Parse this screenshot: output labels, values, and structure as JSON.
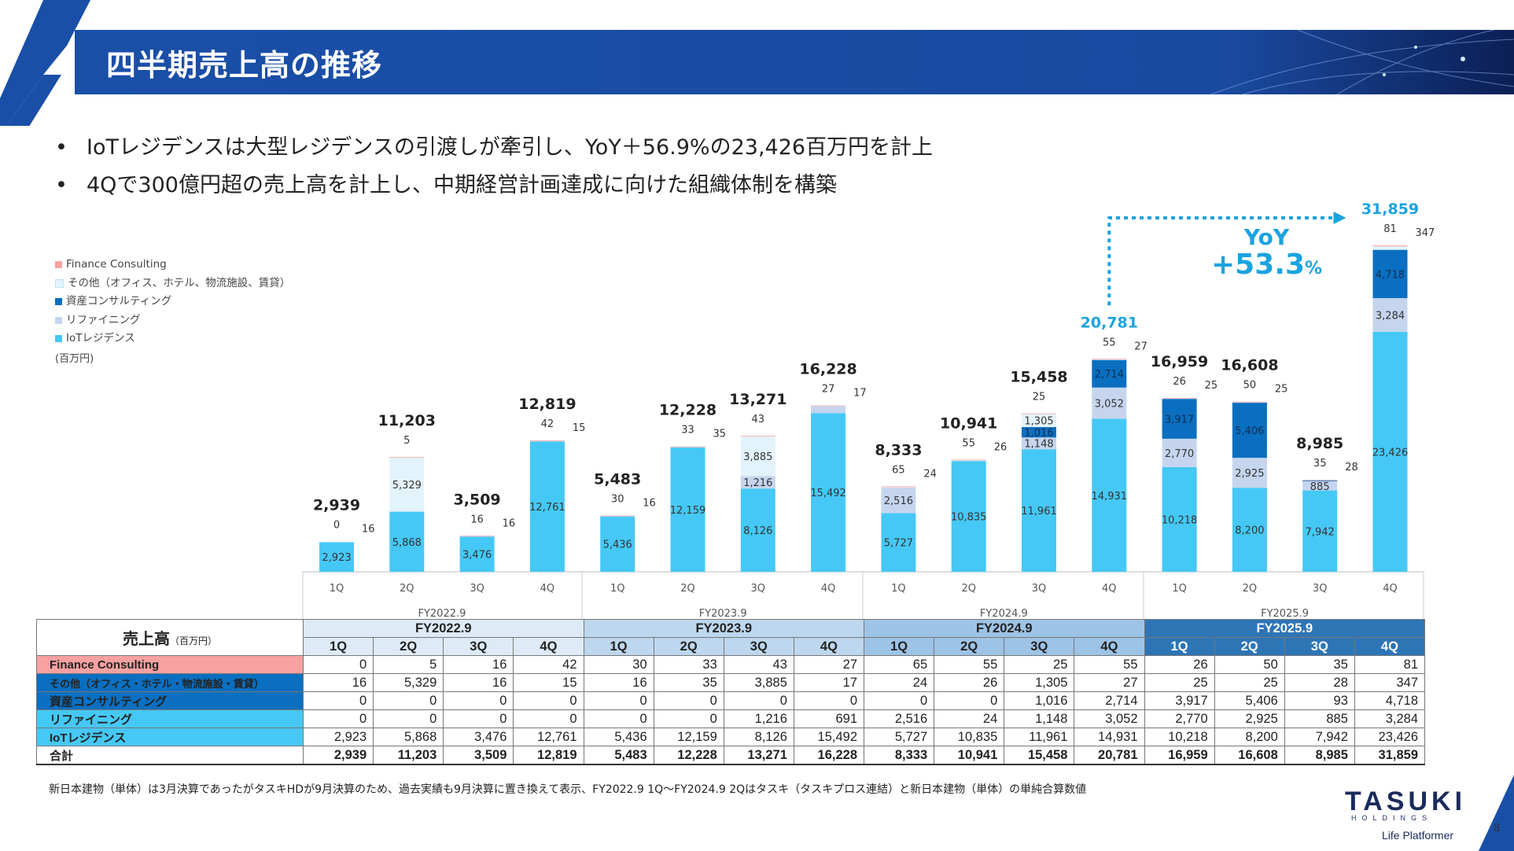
{
  "page": {
    "title": "四半期売上高の推移",
    "bullets": [
      "IoTレジデンスは大型レジデンスの引渡しが牽引し、YoY＋56.9%の23,426百万円を計上",
      "4Qで300億円超の売上高を計上し、中期経営計画達成に向けた組織体制を構築"
    ],
    "footnote": "新日本建物（単体）は3月決算であったがタスキHDが9月決算のため、過去実績も9月決算に置き換えて表示、FY2022.9 1Q〜FY2024.9 2Qはタスキ（タスキプロス連結）と新日本建物（単体）の単純合算数値",
    "logo_text": "TASUKI",
    "logo_sub": "HOLDINGS",
    "tagline": "Life Platformer",
    "page_number": "8"
  },
  "chart_data": {
    "type": "bar",
    "stacked": true,
    "unit": "(百万円)",
    "categories": [
      "1Q",
      "2Q",
      "3Q",
      "4Q",
      "1Q",
      "2Q",
      "3Q",
      "4Q",
      "1Q",
      "2Q",
      "3Q",
      "4Q",
      "1Q",
      "2Q",
      "3Q",
      "4Q"
    ],
    "fiscal_years": [
      "FY2022.9",
      "FY2023.9",
      "FY2024.9",
      "FY2025.9"
    ],
    "series": [
      {
        "name": "IoTレジデンス",
        "color": "#45c8f5",
        "values": [
          2923,
          5868,
          3476,
          12761,
          5436,
          12159,
          8126,
          15492,
          5727,
          10835,
          11961,
          14931,
          10218,
          8200,
          7942,
          23426
        ]
      },
      {
        "name": "リファイニング",
        "color": "#c5d5ee",
        "values": [
          0,
          0,
          0,
          0,
          0,
          0,
          1216,
          691,
          2516,
          24,
          1148,
          3052,
          2770,
          2925,
          885,
          3284
        ]
      },
      {
        "name": "資産コンサルティング",
        "color": "#0a6fc0",
        "values": [
          0,
          0,
          0,
          0,
          0,
          0,
          0,
          0,
          0,
          0,
          1016,
          2714,
          3917,
          5406,
          93,
          4718
        ]
      },
      {
        "name": "その他（オフィス、ホテル、物流施設、賃貸）",
        "color": "#e3f3fc",
        "values": [
          16,
          5329,
          16,
          15,
          16,
          35,
          3885,
          17,
          24,
          26,
          1305,
          27,
          25,
          25,
          28,
          347
        ]
      },
      {
        "name": "Finance Consulting",
        "color": "#f7a1a1",
        "values": [
          0,
          5,
          16,
          42,
          30,
          33,
          43,
          27,
          65,
          55,
          25,
          55,
          26,
          50,
          35,
          81
        ]
      }
    ],
    "totals": [
      2939,
      11203,
      3509,
      12819,
      5483,
      12228,
      13271,
      16228,
      8333,
      10941,
      15458,
      20781,
      16959,
      16608,
      8985,
      31859
    ],
    "total_labels": [
      "2,939",
      "11,203",
      "3,509",
      "12,819",
      "5,483",
      "12,228",
      "13,271",
      "16,228",
      "8,333",
      "10,941",
      "15,458",
      "20,781",
      "16,959",
      "16,608",
      "8,985",
      "31,859"
    ],
    "annotation": {
      "label1": "YoY",
      "label2": "+53.3",
      "label2_suffix": "%"
    },
    "ylim": [
      0,
      32000
    ]
  },
  "table": {
    "header_label": "売上高",
    "header_unit": "（百万円）",
    "fy_headers": [
      "FY2022.9",
      "FY2023.9",
      "FY2024.9",
      "FY2025.9"
    ],
    "q_headers": [
      "1Q",
      "2Q",
      "3Q",
      "4Q",
      "1Q",
      "2Q",
      "3Q",
      "4Q",
      "1Q",
      "2Q",
      "3Q",
      "4Q",
      "1Q",
      "2Q",
      "3Q",
      "4Q"
    ],
    "rows": [
      {
        "label": "Finance Consulting",
        "cells": [
          "0",
          "5",
          "16",
          "42",
          "30",
          "33",
          "43",
          "27",
          "65",
          "55",
          "25",
          "55",
          "26",
          "50",
          "35",
          "81"
        ]
      },
      {
        "label": "その他（オフィス・ホテル・物流施設・賃貸）",
        "cells": [
          "16",
          "5,329",
          "16",
          "15",
          "16",
          "35",
          "3,885",
          "17",
          "24",
          "26",
          "1,305",
          "27",
          "25",
          "25",
          "28",
          "347"
        ]
      },
      {
        "label": "資産コンサルティング",
        "cells": [
          "0",
          "0",
          "0",
          "0",
          "0",
          "0",
          "0",
          "0",
          "0",
          "0",
          "1,016",
          "2,714",
          "3,917",
          "5,406",
          "93",
          "4,718"
        ]
      },
      {
        "label": "リファイニング",
        "cells": [
          "0",
          "0",
          "0",
          "0",
          "0",
          "0",
          "1,216",
          "691",
          "2,516",
          "24",
          "1,148",
          "3,052",
          "2,770",
          "2,925",
          "885",
          "3,284"
        ]
      },
      {
        "label": "IoTレジデンス",
        "cells": [
          "2,923",
          "5,868",
          "3,476",
          "12,761",
          "5,436",
          "12,159",
          "8,126",
          "15,492",
          "5,727",
          "10,835",
          "11,961",
          "14,931",
          "10,218",
          "8,200",
          "7,942",
          "23,426"
        ]
      },
      {
        "label": "合計",
        "cells": [
          "2,939",
          "11,203",
          "3,509",
          "12,819",
          "5,483",
          "12,228",
          "13,271",
          "16,228",
          "8,333",
          "10,941",
          "15,458",
          "20,781",
          "16,959",
          "16,608",
          "8,985",
          "31,859"
        ]
      }
    ]
  }
}
